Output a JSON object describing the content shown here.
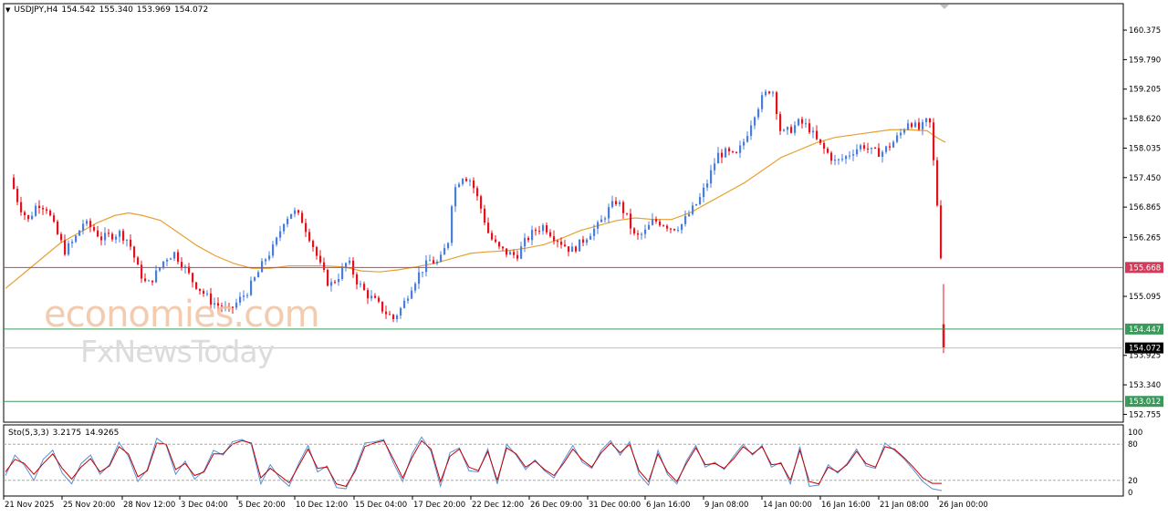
{
  "header": {
    "symbol_timeframe": "USDJPY,H4",
    "open": "154.542",
    "high": "155.340",
    "low": "153.969",
    "close": "154.072"
  },
  "stochastic_header": {
    "name": "Sto(5,3,3)",
    "main": "3.2175",
    "signal": "14.9265"
  },
  "watermark": {
    "line1": "economies.com",
    "line2": "FxNewsToday"
  },
  "colors": {
    "bull": "#4a7fd4",
    "bear": "#e0141e",
    "ma": "#e8a030",
    "resistance": "#d43a5a",
    "support": "#3a9a5a",
    "current": "#000000",
    "sto_main": "#5b8fd9",
    "sto_signal": "#c00000"
  },
  "chart_data": [
    {
      "type": "candlestick",
      "title": "USDJPY,H4",
      "y_ticks": [
        "160.375",
        "159.790",
        "159.205",
        "158.620",
        "158.035",
        "157.450",
        "156.865",
        "156.265",
        "155.095",
        "153.925",
        "153.340",
        "152.755"
      ],
      "ylim": [
        152.6,
        160.9
      ],
      "x_ticks": [
        "21 Nov 2025",
        "25 Nov 20:00",
        "28 Nov 12:00",
        "3 Dec 04:00",
        "5 Dec 20:00",
        "10 Dec 12:00",
        "15 Dec 04:00",
        "17 Dec 20:00",
        "22 Dec 12:00",
        "26 Dec 09:00",
        "31 Dec 00:00",
        "6 Jan 16:00",
        "9 Jan 08:00",
        "14 Jan 00:00",
        "16 Jan 16:00",
        "21 Jan 08:00",
        "26 Jan 00:00"
      ],
      "price_levels": [
        {
          "label": "155.668",
          "value": 155.668,
          "role": "resistance"
        },
        {
          "label": "154.447",
          "value": 154.447,
          "role": "support"
        },
        {
          "label": "154.072",
          "value": 154.072,
          "role": "current"
        },
        {
          "label": "153.012",
          "value": 153.012,
          "role": "support"
        }
      ],
      "moving_average_path": [
        [
          0,
          155.25
        ],
        [
          20,
          155.55
        ],
        [
          40,
          155.85
        ],
        [
          60,
          156.15
        ],
        [
          80,
          156.35
        ],
        [
          100,
          156.55
        ],
        [
          120,
          156.7
        ],
        [
          135,
          156.75
        ],
        [
          150,
          156.7
        ],
        [
          170,
          156.6
        ],
        [
          190,
          156.35
        ],
        [
          210,
          156.1
        ],
        [
          230,
          155.9
        ],
        [
          250,
          155.75
        ],
        [
          270,
          155.65
        ],
        [
          290,
          155.65
        ],
        [
          310,
          155.7
        ],
        [
          330,
          155.7
        ],
        [
          350,
          155.7
        ],
        [
          370,
          155.68
        ],
        [
          390,
          155.6
        ],
        [
          410,
          155.58
        ],
        [
          430,
          155.62
        ],
        [
          450,
          155.68
        ],
        [
          470,
          155.75
        ],
        [
          490,
          155.85
        ],
        [
          510,
          155.95
        ],
        [
          530,
          155.98
        ],
        [
          550,
          156.0
        ],
        [
          570,
          156.05
        ],
        [
          590,
          156.12
        ],
        [
          610,
          156.25
        ],
        [
          630,
          156.4
        ],
        [
          650,
          156.5
        ],
        [
          670,
          156.6
        ],
        [
          690,
          156.65
        ],
        [
          710,
          156.62
        ],
        [
          730,
          156.62
        ],
        [
          750,
          156.75
        ],
        [
          770,
          156.95
        ],
        [
          790,
          157.15
        ],
        [
          810,
          157.35
        ],
        [
          830,
          157.6
        ],
        [
          850,
          157.85
        ],
        [
          870,
          158.0
        ],
        [
          890,
          158.15
        ],
        [
          910,
          158.25
        ],
        [
          930,
          158.3
        ],
        [
          950,
          158.35
        ],
        [
          970,
          158.4
        ],
        [
          990,
          158.4
        ],
        [
          1010,
          158.38
        ],
        [
          1020,
          158.25
        ],
        [
          1030,
          158.15
        ]
      ],
      "price_path": [
        [
          5,
          157.45
        ],
        [
          15,
          156.9
        ],
        [
          25,
          156.6
        ],
        [
          35,
          156.95
        ],
        [
          45,
          156.85
        ],
        [
          55,
          156.4
        ],
        [
          65,
          156.0
        ],
        [
          75,
          156.2
        ],
        [
          85,
          156.55
        ],
        [
          95,
          156.45
        ],
        [
          105,
          156.25
        ],
        [
          115,
          156.3
        ],
        [
          125,
          156.35
        ],
        [
          135,
          156.2
        ],
        [
          145,
          155.65
        ],
        [
          155,
          155.3
        ],
        [
          165,
          155.55
        ],
        [
          175,
          155.85
        ],
        [
          185,
          155.95
        ],
        [
          195,
          155.7
        ],
        [
          205,
          155.4
        ],
        [
          215,
          155.2
        ],
        [
          225,
          155.0
        ],
        [
          235,
          154.9
        ],
        [
          245,
          154.8
        ],
        [
          255,
          155.0
        ],
        [
          265,
          155.2
        ],
        [
          275,
          155.5
        ],
        [
          285,
          155.85
        ],
        [
          295,
          156.1
        ],
        [
          305,
          156.6
        ],
        [
          315,
          156.8
        ],
        [
          325,
          156.6
        ],
        [
          335,
          156.2
        ],
        [
          345,
          155.7
        ],
        [
          355,
          155.3
        ],
        [
          365,
          155.5
        ],
        [
          375,
          155.8
        ],
        [
          385,
          155.4
        ],
        [
          395,
          155.15
        ],
        [
          405,
          155.0
        ],
        [
          415,
          154.8
        ],
        [
          425,
          154.65
        ],
        [
          435,
          154.9
        ],
        [
          445,
          155.3
        ],
        [
          455,
          155.6
        ],
        [
          465,
          155.8
        ],
        [
          475,
          155.75
        ],
        [
          485,
          156.2
        ],
        [
          490,
          157.15
        ],
        [
          500,
          157.5
        ],
        [
          510,
          157.4
        ],
        [
          520,
          156.9
        ],
        [
          530,
          156.3
        ],
        [
          540,
          156.05
        ],
        [
          550,
          155.95
        ],
        [
          560,
          155.9
        ],
        [
          570,
          156.2
        ],
        [
          580,
          156.4
        ],
        [
          590,
          156.5
        ],
        [
          600,
          156.3
        ],
        [
          610,
          156.15
        ],
        [
          620,
          156.0
        ],
        [
          630,
          156.15
        ],
        [
          640,
          156.35
        ],
        [
          650,
          156.5
        ],
        [
          660,
          156.8
        ],
        [
          670,
          157.0
        ],
        [
          680,
          156.7
        ],
        [
          690,
          156.25
        ],
        [
          700,
          156.35
        ],
        [
          710,
          156.6
        ],
        [
          720,
          156.55
        ],
        [
          730,
          156.45
        ],
        [
          740,
          156.5
        ],
        [
          750,
          156.75
        ],
        [
          760,
          157.0
        ],
        [
          770,
          157.4
        ],
        [
          780,
          157.9
        ],
        [
          790,
          157.95
        ],
        [
          800,
          157.85
        ],
        [
          810,
          158.2
        ],
        [
          820,
          158.7
        ],
        [
          830,
          159.05
        ],
        [
          840,
          159.25
        ],
        [
          845,
          158.8
        ],
        [
          850,
          158.3
        ],
        [
          860,
          158.4
        ],
        [
          870,
          158.55
        ],
        [
          880,
          158.45
        ],
        [
          890,
          158.15
        ],
        [
          900,
          157.95
        ],
        [
          910,
          157.75
        ],
        [
          920,
          157.85
        ],
        [
          930,
          158.0
        ],
        [
          940,
          158.1
        ],
        [
          950,
          157.95
        ],
        [
          960,
          157.95
        ],
        [
          970,
          158.1
        ],
        [
          980,
          158.3
        ],
        [
          990,
          158.6
        ],
        [
          1000,
          158.4
        ],
        [
          1008,
          158.5
        ],
        [
          1012,
          158.7
        ],
        [
          1016,
          157.95
        ],
        [
          1020,
          157.2
        ],
        [
          1024,
          156.1
        ],
        [
          1026,
          155.75
        ]
      ]
    },
    {
      "type": "line",
      "title": "Sto(5,3,3)",
      "y_ticks": [
        "100",
        "80",
        "20",
        "0"
      ],
      "ylim": [
        0,
        100
      ],
      "series": [
        {
          "name": "Sto(5,3,3)",
          "values": [
            28,
            62,
            45,
            20,
            55,
            70,
            32,
            14,
            48,
            62,
            30,
            46,
            83,
            60,
            18,
            38,
            90,
            78,
            30,
            52,
            22,
            36,
            70,
            62,
            84,
            88,
            80,
            14,
            46,
            24,
            10,
            48,
            78,
            34,
            44,
            8,
            6,
            40,
            82,
            84,
            88,
            50,
            18,
            64,
            92,
            68,
            10,
            66,
            74,
            36,
            34,
            72,
            14,
            80,
            62,
            38,
            54,
            36,
            24,
            52,
            78,
            50,
            40,
            70,
            86,
            62,
            84,
            30,
            12,
            70,
            30,
            14,
            52,
            78,
            42,
            50,
            38,
            60,
            80,
            62,
            78,
            42,
            50,
            14,
            76,
            10,
            12,
            46,
            32,
            48,
            72,
            44,
            40,
            82,
            70,
            56,
            38,
            18,
            6,
            3
          ]
        },
        {
          "name": "signal",
          "values": [
            34,
            55,
            48,
            30,
            48,
            64,
            40,
            22,
            42,
            56,
            34,
            44,
            76,
            64,
            26,
            36,
            82,
            80,
            38,
            48,
            28,
            34,
            64,
            64,
            80,
            86,
            82,
            24,
            40,
            28,
            16,
            44,
            72,
            40,
            42,
            14,
            10,
            36,
            76,
            82,
            86,
            56,
            24,
            58,
            86,
            72,
            18,
            60,
            72,
            42,
            36,
            68,
            20,
            74,
            64,
            42,
            52,
            38,
            28,
            48,
            72,
            54,
            42,
            66,
            82,
            66,
            80,
            36,
            18,
            64,
            34,
            18,
            48,
            74,
            46,
            48,
            40,
            56,
            76,
            64,
            76,
            46,
            48,
            20,
            70,
            18,
            14,
            42,
            34,
            46,
            68,
            48,
            42,
            76,
            72,
            58,
            42,
            24,
            15,
            15
          ]
        }
      ]
    }
  ]
}
